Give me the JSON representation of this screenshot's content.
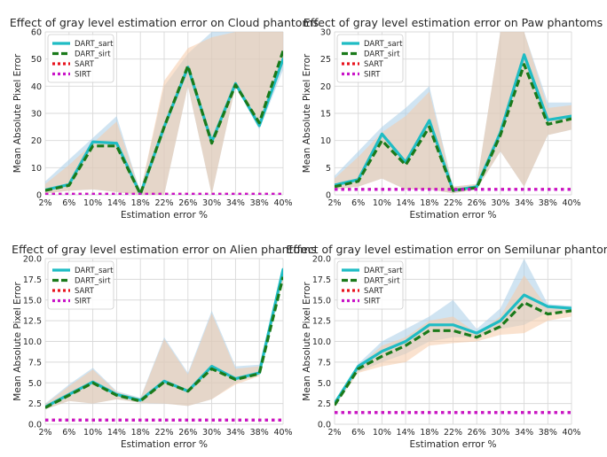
{
  "chart_data": [
    {
      "type": "line",
      "title": "Effect of gray level estimation error on Cloud phantoms",
      "xlabel": "Estimation error %",
      "ylabel": "Mean Absolute Pixel Error",
      "categories": [
        "2%",
        "6%",
        "10%",
        "14%",
        "18%",
        "22%",
        "26%",
        "30%",
        "34%",
        "38%",
        "40%"
      ],
      "ylim": [
        0,
        60
      ],
      "yticks": [
        0,
        10,
        20,
        30,
        40,
        50,
        60
      ],
      "ytick_labels": [
        "0",
        "10",
        "20",
        "30",
        "40",
        "50",
        "60"
      ],
      "grid": true,
      "legend_position": "top-left",
      "series": [
        {
          "name": "DART_sart",
          "values": [
            1.8,
            3.8,
            19.5,
            19.0,
            0.3,
            25.0,
            47.0,
            19.5,
            41.0,
            25.5,
            50.0
          ],
          "color": "#1fbcc4",
          "style": "solid"
        },
        {
          "name": "DART_sirt",
          "values": [
            1.6,
            3.5,
            18.0,
            18.0,
            0.3,
            25.0,
            47.5,
            19.0,
            40.5,
            26.5,
            53.0
          ],
          "color": "#1a7a1a",
          "style": "dashed"
        },
        {
          "name": "SART",
          "values": [
            0.2,
            0.2,
            0.2,
            0.2,
            0.2,
            0.2,
            0.2,
            0.2,
            0.2,
            0.2,
            0.2
          ],
          "color": "#e8141e",
          "style": "dotted"
        },
        {
          "name": "SIRT",
          "values": [
            0.2,
            0.2,
            0.2,
            0.2,
            0.2,
            0.2,
            0.2,
            0.2,
            0.2,
            0.2,
            0.2
          ],
          "color": "#c814c8",
          "style": "dotted"
        }
      ],
      "bands": [
        {
          "series": "DART_sart",
          "color": "#aacde8",
          "lower": [
            0.5,
            1.5,
            2.0,
            1.0,
            0.0,
            0.0,
            40.0,
            0.0,
            40.0,
            24.0,
            46.0
          ],
          "upper": [
            5.0,
            13.0,
            21.0,
            29.0,
            1.0,
            40.0,
            52.0,
            60.0,
            60.0,
            60.0,
            60.0
          ]
        },
        {
          "series": "DART_sirt",
          "color": "#f5cba8",
          "lower": [
            0.5,
            1.5,
            2.0,
            1.0,
            0.0,
            0.0,
            40.0,
            0.0,
            40.0,
            25.0,
            48.0
          ],
          "upper": [
            4.0,
            11.0,
            19.0,
            27.0,
            1.0,
            42.0,
            54.0,
            58.0,
            60.0,
            60.0,
            60.0
          ]
        }
      ]
    },
    {
      "type": "line",
      "title": "Effect of gray level estimation error on Paw phantoms",
      "xlabel": "Estimation error %",
      "ylabel": "Mean Absolute Pixel Error",
      "categories": [
        "2%",
        "6%",
        "10%",
        "14%",
        "18%",
        "22%",
        "26%",
        "30%",
        "34%",
        "38%",
        "40%"
      ],
      "ylim": [
        0,
        30
      ],
      "yticks": [
        0,
        5,
        10,
        15,
        20,
        25,
        30
      ],
      "ytick_labels": [
        "0",
        "5",
        "10",
        "15",
        "20",
        "25",
        "30"
      ],
      "grid": true,
      "legend_position": "top-left",
      "series": [
        {
          "name": "DART_sart",
          "values": [
            1.8,
            2.8,
            11.2,
            6.0,
            13.7,
            0.8,
            1.5,
            11.5,
            25.8,
            13.8,
            14.5
          ],
          "color": "#1fbcc4",
          "style": "solid"
        },
        {
          "name": "DART_sirt",
          "values": [
            1.5,
            2.5,
            10.0,
            5.5,
            12.5,
            0.8,
            1.3,
            11.0,
            24.0,
            13.0,
            14.0
          ],
          "color": "#1a7a1a",
          "style": "dashed"
        },
        {
          "name": "SART",
          "values": [
            1.0,
            1.0,
            1.0,
            1.0,
            1.0,
            1.0,
            1.0,
            1.0,
            1.0,
            1.0,
            1.0
          ],
          "color": "#e8141e",
          "style": "dotted"
        },
        {
          "name": "SIRT",
          "values": [
            1.0,
            1.0,
            1.0,
            1.0,
            1.0,
            1.0,
            1.0,
            1.0,
            1.0,
            1.0,
            1.0
          ],
          "color": "#c814c8",
          "style": "dotted"
        }
      ],
      "bands": [
        {
          "series": "DART_sart",
          "color": "#aacde8",
          "lower": [
            1.0,
            1.5,
            3.0,
            1.0,
            1.0,
            0.3,
            1.0,
            8.0,
            1.5,
            11.0,
            12.0
          ],
          "upper": [
            3.5,
            8.0,
            12.5,
            16.0,
            20.0,
            1.5,
            2.0,
            30.0,
            30.0,
            17.0,
            17.0
          ]
        },
        {
          "series": "DART_sirt",
          "color": "#f5cba8",
          "lower": [
            1.0,
            1.5,
            3.0,
            1.0,
            1.0,
            0.3,
            1.0,
            8.0,
            1.5,
            11.0,
            12.0
          ],
          "upper": [
            3.0,
            7.0,
            11.5,
            14.5,
            19.0,
            1.5,
            2.0,
            30.0,
            30.0,
            16.0,
            16.5
          ]
        }
      ]
    },
    {
      "type": "line",
      "title": "Effect of gray level estimation error on Alien phantoms",
      "xlabel": "Estimation error %",
      "ylabel": "Mean Absolute Pixel Error",
      "categories": [
        "2%",
        "6%",
        "10%",
        "14%",
        "18%",
        "22%",
        "26%",
        "30%",
        "34%",
        "38%",
        "40%"
      ],
      "ylim": [
        0,
        20
      ],
      "yticks": [
        0,
        2.5,
        5,
        7.5,
        10,
        12.5,
        15,
        17.5,
        20
      ],
      "ytick_labels": [
        "0.0",
        "2.5",
        "5.0",
        "7.5",
        "10.0",
        "12.5",
        "15.0",
        "17.5",
        "20.0"
      ],
      "grid": true,
      "legend_position": "top-left",
      "series": [
        {
          "name": "DART_sart",
          "values": [
            2.1,
            3.6,
            5.1,
            3.6,
            2.9,
            5.2,
            4.0,
            7.0,
            5.5,
            6.2,
            18.7
          ],
          "color": "#1fbcc4",
          "style": "solid"
        },
        {
          "name": "DART_sirt",
          "values": [
            2.0,
            3.5,
            5.0,
            3.5,
            2.8,
            5.1,
            4.0,
            6.7,
            5.4,
            6.1,
            17.8
          ],
          "color": "#1a7a1a",
          "style": "dashed"
        },
        {
          "name": "SART",
          "values": [
            0.5,
            0.5,
            0.5,
            0.5,
            0.5,
            0.5,
            0.5,
            0.5,
            0.5,
            0.5,
            0.5
          ],
          "color": "#e8141e",
          "style": "dotted"
        },
        {
          "name": "SIRT",
          "values": [
            0.5,
            0.5,
            0.5,
            0.5,
            0.5,
            0.5,
            0.5,
            0.5,
            0.5,
            0.5,
            0.5
          ],
          "color": "#c814c8",
          "style": "dotted"
        }
      ],
      "bands": [
        {
          "series": "DART_sart",
          "color": "#aacde8",
          "lower": [
            1.8,
            2.8,
            2.5,
            3.0,
            2.6,
            2.5,
            2.2,
            3.0,
            5.0,
            6.0,
            18.0
          ],
          "upper": [
            2.5,
            4.8,
            6.8,
            4.0,
            3.2,
            10.5,
            6.2,
            13.7,
            7.0,
            7.2,
            19.0
          ]
        },
        {
          "series": "DART_sirt",
          "color": "#f5cba8",
          "lower": [
            1.8,
            2.8,
            2.5,
            3.0,
            2.6,
            2.5,
            2.2,
            3.0,
            4.8,
            5.8,
            17.3
          ],
          "upper": [
            2.4,
            4.6,
            6.6,
            3.9,
            3.1,
            10.3,
            6.0,
            13.4,
            6.7,
            7.0,
            18.5
          ]
        }
      ]
    },
    {
      "type": "line",
      "title": "Effect of gray level estimation error on Semilunar phantoms",
      "xlabel": "Estimation error %",
      "ylabel": "Mean Absolute Pixel Error",
      "categories": [
        "2%",
        "6%",
        "10%",
        "14%",
        "18%",
        "22%",
        "26%",
        "30%",
        "34%",
        "38%",
        "40%"
      ],
      "ylim": [
        0,
        20
      ],
      "yticks": [
        0,
        2.5,
        5,
        7.5,
        10,
        12.5,
        15,
        17.5,
        20
      ],
      "ytick_labels": [
        "0.0",
        "2.5",
        "5.0",
        "7.5",
        "10.0",
        "12.5",
        "15.0",
        "17.5",
        "20.0"
      ],
      "grid": true,
      "legend_position": "top-left",
      "series": [
        {
          "name": "DART_sart",
          "values": [
            2.5,
            7.0,
            8.8,
            10.0,
            12.0,
            12.0,
            11.0,
            12.5,
            15.6,
            14.2,
            14.0
          ],
          "color": "#1fbcc4",
          "style": "solid"
        },
        {
          "name": "DART_sirt",
          "values": [
            2.3,
            6.7,
            8.2,
            9.5,
            11.3,
            11.3,
            10.5,
            11.8,
            14.7,
            13.3,
            13.7
          ],
          "color": "#1a7a1a",
          "style": "dashed"
        },
        {
          "name": "SART",
          "values": [
            1.4,
            1.4,
            1.4,
            1.4,
            1.4,
            1.4,
            1.4,
            1.4,
            1.4,
            1.4,
            1.4
          ],
          "color": "#e8141e",
          "style": "dotted"
        },
        {
          "name": "SIRT",
          "values": [
            1.4,
            1.4,
            1.4,
            1.4,
            1.4,
            1.4,
            1.4,
            1.4,
            1.4,
            1.4,
            1.4
          ],
          "color": "#c814c8",
          "style": "dotted"
        }
      ],
      "bands": [
        {
          "series": "DART_sart",
          "color": "#aacde8",
          "lower": [
            2.3,
            6.3,
            7.5,
            8.5,
            10.0,
            10.5,
            10.5,
            11.5,
            12.0,
            13.5,
            13.5
          ],
          "upper": [
            2.7,
            7.3,
            10.0,
            11.5,
            13.0,
            15.0,
            11.5,
            14.0,
            20.0,
            14.5,
            14.3
          ]
        },
        {
          "series": "DART_sirt",
          "color": "#f5cba8",
          "lower": [
            2.1,
            6.2,
            7.0,
            7.5,
            9.5,
            9.8,
            10.0,
            10.8,
            11.0,
            12.5,
            13.0
          ],
          "upper": [
            2.5,
            7.0,
            9.5,
            10.5,
            12.5,
            13.0,
            11.0,
            13.0,
            18.0,
            14.0,
            14.0
          ]
        }
      ]
    }
  ]
}
